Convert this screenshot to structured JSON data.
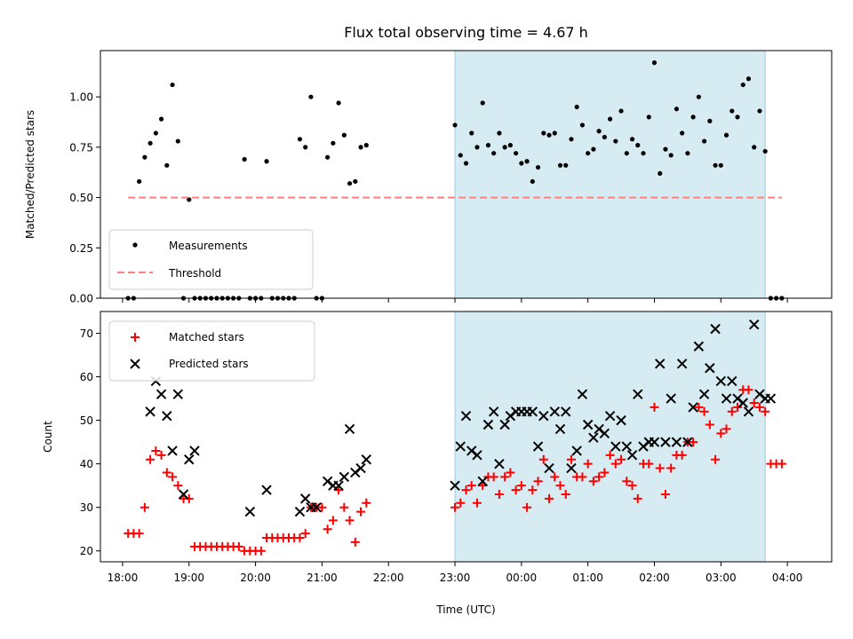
{
  "chart_data": [
    {
      "type": "scatter",
      "title": "Flux total observing time = 4.67 h",
      "xlabel": "",
      "ylabel": "Matched/Predicted stars",
      "xlim": [
        "17:40",
        "04:40"
      ],
      "ylim": [
        0,
        1.23
      ],
      "x_ticks": [
        "18:00",
        "19:00",
        "20:00",
        "21:00",
        "22:00",
        "23:00",
        "00:00",
        "01:00",
        "02:00",
        "03:00",
        "04:00"
      ],
      "y_ticks": [
        "0.00",
        "0.25",
        "0.50",
        "0.75",
        "1.00"
      ],
      "y_tick_values": [
        0,
        0.25,
        0.5,
        0.75,
        1.0
      ],
      "observing_window": [
        "23:00",
        "03:40"
      ],
      "legend": {
        "position": "lower-left",
        "entries": [
          "Measurements",
          "Threshold"
        ]
      },
      "series": [
        {
          "name": "Measurements",
          "color": "#000000",
          "x": [
            "18:05",
            "18:10",
            "18:15",
            "18:20",
            "18:25",
            "18:30",
            "18:35",
            "18:40",
            "18:45",
            "18:50",
            "18:55",
            "19:00",
            "19:05",
            "19:10",
            "19:15",
            "19:20",
            "19:25",
            "19:30",
            "19:35",
            "19:40",
            "19:45",
            "19:50",
            "19:55",
            "20:00",
            "20:05",
            "20:10",
            "20:15",
            "20:20",
            "20:25",
            "20:30",
            "20:35",
            "20:40",
            "20:45",
            "20:50",
            "20:55",
            "21:00",
            "21:05",
            "21:10",
            "21:15",
            "21:20",
            "21:25",
            "21:30",
            "21:35",
            "21:40",
            "23:00",
            "23:05",
            "23:10",
            "23:15",
            "23:20",
            "23:25",
            "23:30",
            "23:35",
            "23:40",
            "23:45",
            "23:50",
            "23:55",
            "00:00",
            "00:05",
            "00:10",
            "00:15",
            "00:20",
            "00:25",
            "00:30",
            "00:35",
            "00:40",
            "00:45",
            "00:50",
            "00:55",
            "01:00",
            "01:05",
            "01:10",
            "01:15",
            "01:20",
            "01:25",
            "01:30",
            "01:35",
            "01:40",
            "01:45",
            "01:50",
            "01:55",
            "02:00",
            "02:05",
            "02:10",
            "02:15",
            "02:20",
            "02:25",
            "02:30",
            "02:35",
            "02:40",
            "02:45",
            "02:50",
            "02:55",
            "03:00",
            "03:05",
            "03:10",
            "03:15",
            "03:20",
            "03:25",
            "03:30",
            "03:35",
            "03:40",
            "03:45",
            "03:50",
            "03:55"
          ],
          "y": [
            0,
            0,
            0.58,
            0.7,
            0.77,
            0.82,
            0.89,
            0.66,
            1.06,
            0.78,
            0,
            0.49,
            0,
            0,
            0,
            0,
            0,
            0,
            0,
            0,
            0,
            0.69,
            0,
            0,
            0,
            0.68,
            0,
            0,
            0,
            0,
            0,
            0.79,
            0.75,
            1.0,
            0,
            0,
            0.7,
            0.77,
            0.97,
            0.81,
            0.57,
            0.58,
            0.75,
            0.76,
            0.86,
            0.71,
            0.67,
            0.82,
            0.75,
            0.97,
            0.76,
            0.72,
            0.82,
            0.75,
            0.76,
            0.72,
            0.67,
            0.68,
            0.58,
            0.65,
            0.82,
            0.81,
            0.82,
            0.66,
            0.66,
            0.79,
            0.95,
            0.86,
            0.72,
            0.74,
            0.83,
            0.8,
            0.89,
            0.78,
            0.93,
            0.72,
            0.79,
            0.76,
            0.72,
            0.9,
            1.17,
            0.62,
            0.74,
            0.71,
            0.94,
            0.82,
            0.72,
            0.9,
            1.0,
            0.78,
            0.88,
            0.66,
            0.66,
            0.81,
            0.93,
            0.9,
            1.06,
            1.09,
            0.75,
            0.93,
            0.73,
            0,
            0,
            0
          ]
        },
        {
          "name": "Threshold",
          "color": "#ff7f7f",
          "x": [
            "18:05",
            "03:55"
          ],
          "y": [
            0.5,
            0.5
          ]
        }
      ]
    },
    {
      "type": "scatter",
      "title": "",
      "xlabel": "Time (UTC)",
      "ylabel": "Count",
      "xlim": [
        "17:40",
        "04:40"
      ],
      "ylim": [
        17.5,
        75
      ],
      "x_ticks": [
        "18:00",
        "19:00",
        "20:00",
        "21:00",
        "22:00",
        "23:00",
        "00:00",
        "01:00",
        "02:00",
        "03:00",
        "04:00"
      ],
      "y_ticks": [
        "20",
        "30",
        "40",
        "50",
        "60",
        "70"
      ],
      "y_tick_values": [
        20,
        30,
        40,
        50,
        60,
        70
      ],
      "observing_window": [
        "23:00",
        "03:40"
      ],
      "legend": {
        "position": "upper-left",
        "entries": [
          "Matched stars",
          "Predicted stars"
        ]
      },
      "series": [
        {
          "name": "Matched stars",
          "color": "#ff0000",
          "x": [
            "18:05",
            "18:10",
            "18:15",
            "18:20",
            "18:25",
            "18:30",
            "18:35",
            "18:40",
            "18:45",
            "18:50",
            "18:55",
            "19:00",
            "19:05",
            "19:10",
            "19:15",
            "19:20",
            "19:25",
            "19:30",
            "19:35",
            "19:40",
            "19:45",
            "19:50",
            "19:55",
            "20:00",
            "20:05",
            "20:10",
            "20:15",
            "20:20",
            "20:25",
            "20:30",
            "20:35",
            "20:40",
            "20:45",
            "20:50",
            "20:55",
            "21:00",
            "21:05",
            "21:10",
            "21:15",
            "21:20",
            "21:25",
            "21:30",
            "21:35",
            "21:40",
            "23:00",
            "23:05",
            "23:10",
            "23:15",
            "23:20",
            "23:25",
            "23:30",
            "23:35",
            "23:40",
            "23:45",
            "23:50",
            "23:55",
            "00:00",
            "00:05",
            "00:10",
            "00:15",
            "00:20",
            "00:25",
            "00:30",
            "00:35",
            "00:40",
            "00:45",
            "00:50",
            "00:55",
            "01:00",
            "01:05",
            "01:10",
            "01:15",
            "01:20",
            "01:25",
            "01:30",
            "01:35",
            "01:40",
            "01:45",
            "01:50",
            "01:55",
            "02:00",
            "02:05",
            "02:10",
            "02:15",
            "02:20",
            "02:25",
            "02:30",
            "02:35",
            "02:40",
            "02:45",
            "02:50",
            "02:55",
            "03:00",
            "03:05",
            "03:10",
            "03:15",
            "03:20",
            "03:25",
            "03:30",
            "03:35",
            "03:40",
            "03:45",
            "03:50",
            "03:55"
          ],
          "y": [
            24,
            24,
            24,
            30,
            41,
            43,
            42,
            38,
            37,
            35,
            32,
            32,
            21,
            21,
            21,
            21,
            21,
            21,
            21,
            21,
            21,
            20,
            20,
            20,
            20,
            23,
            23,
            23,
            23,
            23,
            23,
            23,
            24,
            30,
            30,
            30,
            25,
            27,
            34,
            30,
            27,
            22,
            29,
            31,
            30,
            31,
            34,
            35,
            31,
            35,
            37,
            37,
            33,
            37,
            38,
            34,
            35,
            30,
            34,
            36,
            41,
            32,
            37,
            35,
            33,
            41,
            37,
            37,
            40,
            36,
            37,
            38,
            42,
            40,
            41,
            36,
            35,
            32,
            40,
            40,
            53,
            39,
            33,
            39,
            42,
            42,
            45,
            45,
            53,
            52,
            49,
            41,
            47,
            48,
            52,
            53,
            57,
            57,
            54,
            53,
            52,
            40,
            40,
            40
          ]
        },
        {
          "name": "Predicted stars",
          "color": "#000000",
          "x": [
            "18:25",
            "18:30",
            "18:35",
            "18:40",
            "18:45",
            "18:50",
            "18:55",
            "19:00",
            "19:05",
            "19:55",
            "20:10",
            "20:40",
            "20:45",
            "20:50",
            "20:55",
            "21:05",
            "21:10",
            "21:15",
            "21:20",
            "21:25",
            "21:30",
            "21:35",
            "21:40",
            "23:00",
            "23:05",
            "23:10",
            "23:15",
            "23:20",
            "23:25",
            "23:30",
            "23:35",
            "23:40",
            "23:45",
            "23:50",
            "23:55",
            "00:00",
            "00:05",
            "00:10",
            "00:15",
            "00:20",
            "00:25",
            "00:30",
            "00:35",
            "00:40",
            "00:45",
            "00:50",
            "00:55",
            "01:00",
            "01:05",
            "01:10",
            "01:15",
            "01:20",
            "01:25",
            "01:30",
            "01:35",
            "01:40",
            "01:45",
            "01:50",
            "01:55",
            "02:00",
            "02:05",
            "02:10",
            "02:15",
            "02:20",
            "02:25",
            "02:30",
            "02:35",
            "02:40",
            "02:45",
            "02:50",
            "02:55",
            "03:00",
            "03:05",
            "03:10",
            "03:15",
            "03:20",
            "03:25",
            "03:30",
            "03:35",
            "03:40",
            "03:45"
          ],
          "y": [
            52,
            59,
            56,
            51,
            43,
            56,
            33,
            41,
            43,
            29,
            34,
            29,
            32,
            30,
            30,
            36,
            35,
            35,
            37,
            48,
            38,
            39,
            41,
            35,
            44,
            51,
            43,
            42,
            36,
            49,
            52,
            40,
            49,
            51,
            52,
            52,
            52,
            52,
            44,
            51,
            39,
            52,
            48,
            52,
            39,
            43,
            56,
            49,
            46,
            48,
            47,
            51,
            44,
            50,
            44,
            42,
            56,
            44,
            45,
            45,
            63,
            45,
            55,
            45,
            63,
            45,
            53,
            67,
            56,
            62,
            71,
            59,
            55,
            59,
            55,
            54,
            52,
            72,
            56,
            55,
            55
          ]
        }
      ]
    }
  ]
}
